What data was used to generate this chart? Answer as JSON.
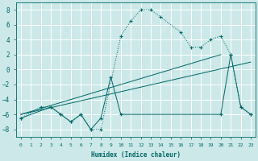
{
  "xlabel": "Humidex (Indice chaleur)",
  "bg_color": "#cce8e8",
  "line_color": "#006666",
  "grid_color": "#ffffff",
  "xlim": [
    -0.5,
    23.5
  ],
  "ylim": [
    -9,
    9
  ],
  "yticks": [
    -8,
    -6,
    -4,
    -2,
    0,
    2,
    4,
    6,
    8
  ],
  "xticks": [
    0,
    1,
    2,
    3,
    4,
    5,
    6,
    7,
    8,
    9,
    10,
    11,
    12,
    13,
    14,
    15,
    16,
    17,
    18,
    19,
    20,
    21,
    22,
    23
  ],
  "curve1_x": [
    0,
    2,
    3,
    4,
    5,
    6,
    7,
    8,
    10,
    11,
    12,
    13,
    14,
    16,
    17,
    18,
    19,
    20,
    21,
    22,
    23
  ],
  "curve1_y": [
    -6.5,
    -5,
    -5,
    -6,
    -7,
    -6,
    -8,
    -8,
    4.5,
    6.5,
    8,
    8,
    7,
    5,
    3,
    3,
    4,
    4.5,
    2,
    -5,
    -6
  ],
  "curve2_x": [
    0,
    3,
    4,
    5,
    6,
    7,
    8,
    9,
    10,
    20,
    21,
    22,
    23
  ],
  "curve2_y": [
    -6.5,
    -5,
    -6,
    -7,
    -6,
    -8,
    -6.5,
    -1,
    -6,
    -6,
    2,
    -5,
    -6
  ],
  "line3_x": [
    0,
    23
  ],
  "line3_y": [
    -6,
    1
  ],
  "line4_x": [
    0,
    20
  ],
  "line4_y": [
    -6,
    2
  ]
}
